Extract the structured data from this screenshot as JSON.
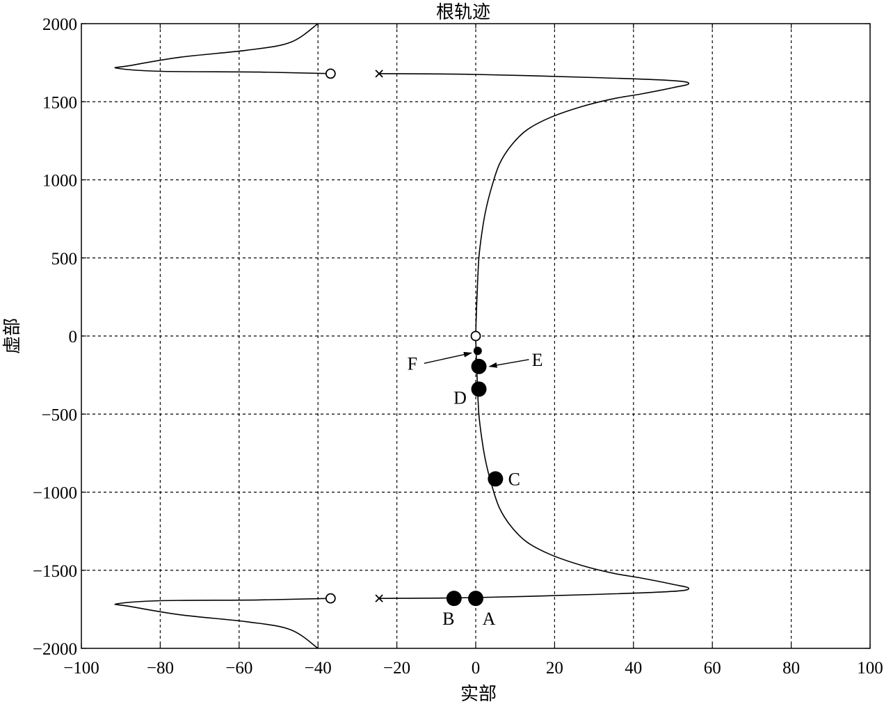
{
  "chart_data": {
    "type": "scatter",
    "title": "根轨迹",
    "xlabel": "实部",
    "ylabel": "虚部",
    "xlim": [
      -100,
      100
    ],
    "ylim": [
      -2000,
      2000
    ],
    "xticks": [
      -100,
      -80,
      -60,
      -40,
      -20,
      0,
      20,
      40,
      60,
      80,
      100
    ],
    "yticks": [
      -2000,
      -1500,
      -1000,
      -500,
      0,
      500,
      1000,
      1500,
      2000
    ],
    "xtick_labels": [
      "−100",
      "−80",
      "−60",
      "−40",
      "−20",
      "0",
      "20",
      "40",
      "60",
      "80",
      "100"
    ],
    "ytick_labels": [
      "−2000",
      "−1500",
      "−1000",
      "−500",
      "0",
      "500",
      "1000",
      "1500",
      "2000"
    ],
    "grid": true,
    "grid_style": "dashed",
    "poles": [
      {
        "x": -24.5,
        "y": 1680
      },
      {
        "x": -24.5,
        "y": -1680
      }
    ],
    "zeros": [
      {
        "x": -36.8,
        "y": 1680
      },
      {
        "x": -36.8,
        "y": -1680
      },
      {
        "x": 0,
        "y": 0
      }
    ],
    "branches": [
      {
        "points": [
          [
            -24.5,
            1680
          ],
          [
            0,
            1675
          ],
          [
            30,
            1655
          ],
          [
            50,
            1635
          ],
          [
            54,
            1615
          ],
          [
            50,
            1590
          ],
          [
            42,
            1550
          ],
          [
            35,
            1520
          ],
          [
            27,
            1470
          ],
          [
            19,
            1400
          ],
          [
            13,
            1320
          ],
          [
            9,
            1220
          ],
          [
            6,
            1100
          ],
          [
            4,
            950
          ],
          [
            2.5,
            800
          ],
          [
            1.5,
            650
          ],
          [
            0.8,
            500
          ],
          [
            0.4,
            300
          ],
          [
            0.1,
            100
          ],
          [
            0,
            0
          ]
        ]
      },
      {
        "points": [
          [
            -24.5,
            -1680
          ],
          [
            0,
            -1675
          ],
          [
            30,
            -1655
          ],
          [
            50,
            -1635
          ],
          [
            54,
            -1615
          ],
          [
            50,
            -1590
          ],
          [
            42,
            -1550
          ],
          [
            35,
            -1520
          ],
          [
            27,
            -1470
          ],
          [
            19,
            -1400
          ],
          [
            13,
            -1320
          ],
          [
            9,
            -1220
          ],
          [
            6,
            -1100
          ],
          [
            4,
            -950
          ],
          [
            2.5,
            -800
          ],
          [
            1.5,
            -650
          ],
          [
            0.8,
            -500
          ],
          [
            0.4,
            -300
          ],
          [
            0.1,
            -100
          ],
          [
            0,
            0
          ]
        ]
      },
      {
        "points": [
          [
            -36.8,
            1680
          ],
          [
            -55,
            1690
          ],
          [
            -80,
            1695
          ],
          [
            -91,
            1715
          ],
          [
            -88,
            1730
          ],
          [
            -75,
            1785
          ],
          [
            -58,
            1830
          ],
          [
            -47,
            1880
          ],
          [
            -40,
            2000
          ]
        ]
      },
      {
        "points": [
          [
            -36.8,
            -1680
          ],
          [
            -55,
            -1690
          ],
          [
            -80,
            -1695
          ],
          [
            -91,
            -1715
          ],
          [
            -88,
            -1730
          ],
          [
            -75,
            -1785
          ],
          [
            -58,
            -1830
          ],
          [
            -47,
            -1880
          ],
          [
            -40,
            -2000
          ]
        ]
      }
    ],
    "highlighted_points": [
      {
        "label": "A",
        "x": 0,
        "y": -1680,
        "size": "large"
      },
      {
        "label": "B",
        "x": -5.5,
        "y": -1680,
        "size": "large"
      },
      {
        "label": "C",
        "x": 5,
        "y": -915,
        "size": "large"
      },
      {
        "label": "D",
        "x": 0.8,
        "y": -340,
        "size": "large"
      },
      {
        "label": "E",
        "x": 0.8,
        "y": -195,
        "size": "large"
      },
      {
        "label": "F",
        "x": 0.5,
        "y": -95,
        "size": "small"
      }
    ],
    "colors": {
      "line": "#000000",
      "grid": "#000000",
      "background": "#ffffff"
    }
  }
}
